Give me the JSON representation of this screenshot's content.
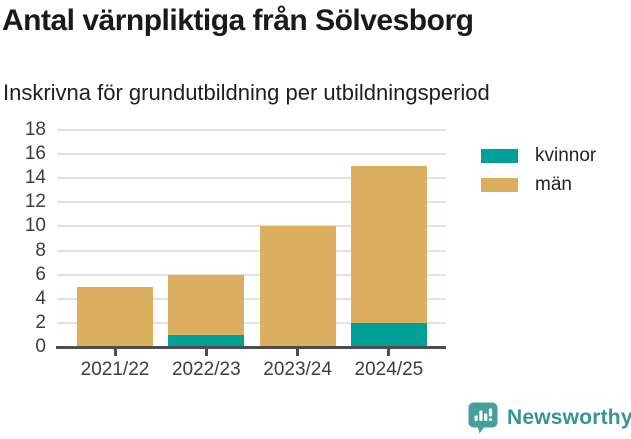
{
  "header": {
    "title": "Antal värnpliktiga från Sölvesborg",
    "subtitle": "Inskrivna för grundutbildning per utbildningsperiod"
  },
  "chart_data": {
    "type": "bar",
    "stacked": true,
    "title": "Antal värnpliktiga från Sölvesborg",
    "subtitle": "Inskrivna för grundutbildning per utbildningsperiod",
    "categories": [
      "2021/22",
      "2022/23",
      "2023/24",
      "2024/25"
    ],
    "series": [
      {
        "name": "kvinnor",
        "color": "#00a096",
        "values": [
          0,
          1,
          0,
          2
        ]
      },
      {
        "name": "män",
        "color": "#dcae60",
        "values": [
          5,
          5,
          10,
          13
        ]
      }
    ],
    "totals": [
      5,
      6,
      10,
      15
    ],
    "xlabel": "",
    "ylabel": "",
    "ylim": [
      0,
      18
    ],
    "yticks": [
      0,
      2,
      4,
      6,
      8,
      10,
      12,
      14,
      16,
      18
    ],
    "grid": true,
    "legend_position": "right"
  },
  "legend": {
    "items": [
      {
        "label": "kvinnor",
        "color": "#00a096"
      },
      {
        "label": "män",
        "color": "#dcae60"
      }
    ]
  },
  "footer": {
    "brand": "Newsworthy",
    "brand_color": "#39958f",
    "icon": "bar-chart-speech-bubble"
  },
  "style": {
    "gridline_color": "#e2e2e2",
    "axis_color": "#4d4d4d",
    "tick_label_color": "#3d3d3d"
  }
}
